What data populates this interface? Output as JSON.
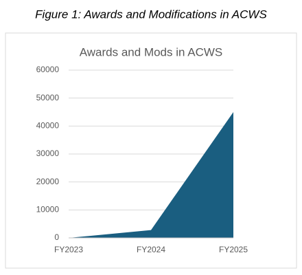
{
  "figure_caption": "Figure 1: Awards and Modifications in ACWS",
  "chart_data": {
    "type": "area",
    "title": "Awards and Mods in ACWS",
    "categories": [
      "FY2023",
      "FY2024",
      "FY2025"
    ],
    "values": [
      0,
      2800,
      45000
    ],
    "color": "#1a5e80",
    "ylim": [
      0,
      60000
    ],
    "yticks": [
      0,
      10000,
      20000,
      30000,
      40000,
      50000,
      60000
    ],
    "grid": true
  }
}
